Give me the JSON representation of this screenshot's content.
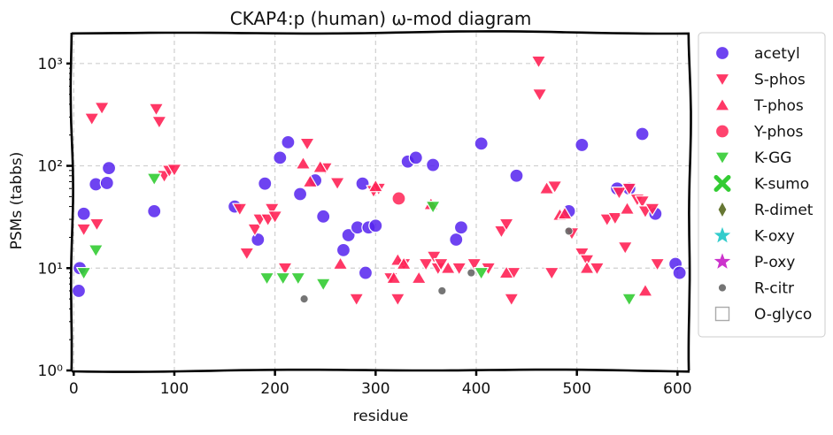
{
  "chart_data": {
    "type": "scatter",
    "title": "CKAP4:p (human) ω-mod diagram",
    "xlabel": "residue",
    "ylabel": "PSMs (tabbs)",
    "xlim": [
      -2,
      612
    ],
    "ylim": [
      1,
      2000
    ],
    "y_scale": "log",
    "grid": true,
    "legend_position": "outside-right",
    "x_ticks": [
      0,
      100,
      200,
      300,
      400,
      500,
      600
    ],
    "y_ticks": [
      {
        "value": 1,
        "label": "10⁰"
      },
      {
        "value": 10,
        "label": "10¹"
      },
      {
        "value": 100,
        "label": "10²"
      },
      {
        "value": 1000,
        "label": "10³"
      }
    ],
    "series": [
      {
        "name": "acetyl",
        "marker": "circle",
        "color": "#5522ee",
        "points": [
          [
            5,
            6
          ],
          [
            6,
            10
          ],
          [
            10,
            34
          ],
          [
            22,
            66
          ],
          [
            33,
            68
          ],
          [
            35,
            95
          ],
          [
            80,
            36
          ],
          [
            160,
            40
          ],
          [
            190,
            67
          ],
          [
            183,
            19
          ],
          [
            205,
            120
          ],
          [
            213,
            170
          ],
          [
            225,
            53
          ],
          [
            240,
            72
          ],
          [
            248,
            32
          ],
          [
            268,
            15
          ],
          [
            273,
            21
          ],
          [
            282,
            25
          ],
          [
            287,
            67
          ],
          [
            290,
            9
          ],
          [
            293,
            25
          ],
          [
            300,
            26
          ],
          [
            332,
            110
          ],
          [
            340,
            120
          ],
          [
            357,
            102
          ],
          [
            380,
            19
          ],
          [
            385,
            25
          ],
          [
            405,
            165
          ],
          [
            440,
            80
          ],
          [
            492,
            36
          ],
          [
            505,
            160
          ],
          [
            540,
            60
          ],
          [
            552,
            60
          ],
          [
            565,
            205
          ],
          [
            578,
            34
          ],
          [
            598,
            11
          ],
          [
            602,
            9
          ]
        ]
      },
      {
        "name": "S-phos",
        "marker": "triangle-down",
        "color": "#ff2255",
        "points": [
          [
            10,
            24
          ],
          [
            18,
            290
          ],
          [
            23,
            27
          ],
          [
            28,
            370
          ],
          [
            82,
            360
          ],
          [
            85,
            270
          ],
          [
            90,
            80
          ],
          [
            95,
            90
          ],
          [
            100,
            92
          ],
          [
            165,
            38
          ],
          [
            172,
            14
          ],
          [
            180,
            24
          ],
          [
            185,
            30
          ],
          [
            193,
            30
          ],
          [
            197,
            38
          ],
          [
            200,
            32
          ],
          [
            210,
            10
          ],
          [
            232,
            165
          ],
          [
            250,
            95
          ],
          [
            262,
            68
          ],
          [
            281,
            5
          ],
          [
            298,
            57
          ],
          [
            303,
            60
          ],
          [
            315,
            8
          ],
          [
            322,
            5
          ],
          [
            328,
            11
          ],
          [
            350,
            11
          ],
          [
            358,
            13
          ],
          [
            362,
            10
          ],
          [
            365,
            11
          ],
          [
            383,
            10
          ],
          [
            398,
            11
          ],
          [
            412,
            10
          ],
          [
            425,
            23
          ],
          [
            430,
            27
          ],
          [
            435,
            5
          ],
          [
            437,
            9
          ],
          [
            462,
            1050
          ],
          [
            463,
            500
          ],
          [
            478,
            63
          ],
          [
            475,
            9
          ],
          [
            495,
            22
          ],
          [
            505,
            14
          ],
          [
            510,
            12
          ],
          [
            520,
            10
          ],
          [
            530,
            30
          ],
          [
            538,
            31
          ],
          [
            542,
            55
          ],
          [
            548,
            16
          ],
          [
            552,
            60
          ],
          [
            560,
            47
          ],
          [
            565,
            45
          ],
          [
            568,
            36
          ],
          [
            575,
            38
          ],
          [
            580,
            11
          ]
        ]
      },
      {
        "name": "T-phos",
        "marker": "triangle-up",
        "color": "#ff2255",
        "points": [
          [
            228,
            105
          ],
          [
            235,
            70
          ],
          [
            245,
            97
          ],
          [
            265,
            11
          ],
          [
            300,
            63
          ],
          [
            318,
            8
          ],
          [
            322,
            12
          ],
          [
            328,
            11
          ],
          [
            343,
            8
          ],
          [
            355,
            42
          ],
          [
            372,
            10
          ],
          [
            430,
            9
          ],
          [
            470,
            60
          ],
          [
            483,
            33
          ],
          [
            488,
            34
          ],
          [
            510,
            10
          ],
          [
            550,
            38
          ],
          [
            568,
            6
          ]
        ]
      },
      {
        "name": "Y-phos",
        "marker": "circle",
        "color": "#ff2255",
        "points": [
          [
            323,
            48
          ]
        ]
      },
      {
        "name": "K-GG",
        "marker": "triangle-down",
        "color": "#33cc33",
        "points": [
          [
            10,
            9
          ],
          [
            22,
            15
          ],
          [
            80,
            75
          ],
          [
            192,
            8
          ],
          [
            208,
            8
          ],
          [
            223,
            8
          ],
          [
            248,
            7
          ],
          [
            357,
            40
          ],
          [
            405,
            9
          ],
          [
            552,
            5
          ]
        ]
      },
      {
        "name": "K-sumo",
        "marker": "x",
        "color": "#33cc33",
        "points": []
      },
      {
        "name": "R-dimet",
        "marker": "diamond",
        "color": "#667733",
        "points": []
      },
      {
        "name": "K-oxy",
        "marker": "star",
        "color": "#33cccc",
        "points": []
      },
      {
        "name": "P-oxy",
        "marker": "star",
        "color": "#cc33cc",
        "points": []
      },
      {
        "name": "R-citr",
        "marker": "small-circle",
        "color": "#666666",
        "points": [
          [
            229,
            5
          ],
          [
            366,
            6
          ],
          [
            395,
            9
          ],
          [
            492,
            23
          ]
        ]
      },
      {
        "name": "O-glyco",
        "marker": "square-outline",
        "color": "#aaaaaa",
        "points": []
      }
    ]
  }
}
